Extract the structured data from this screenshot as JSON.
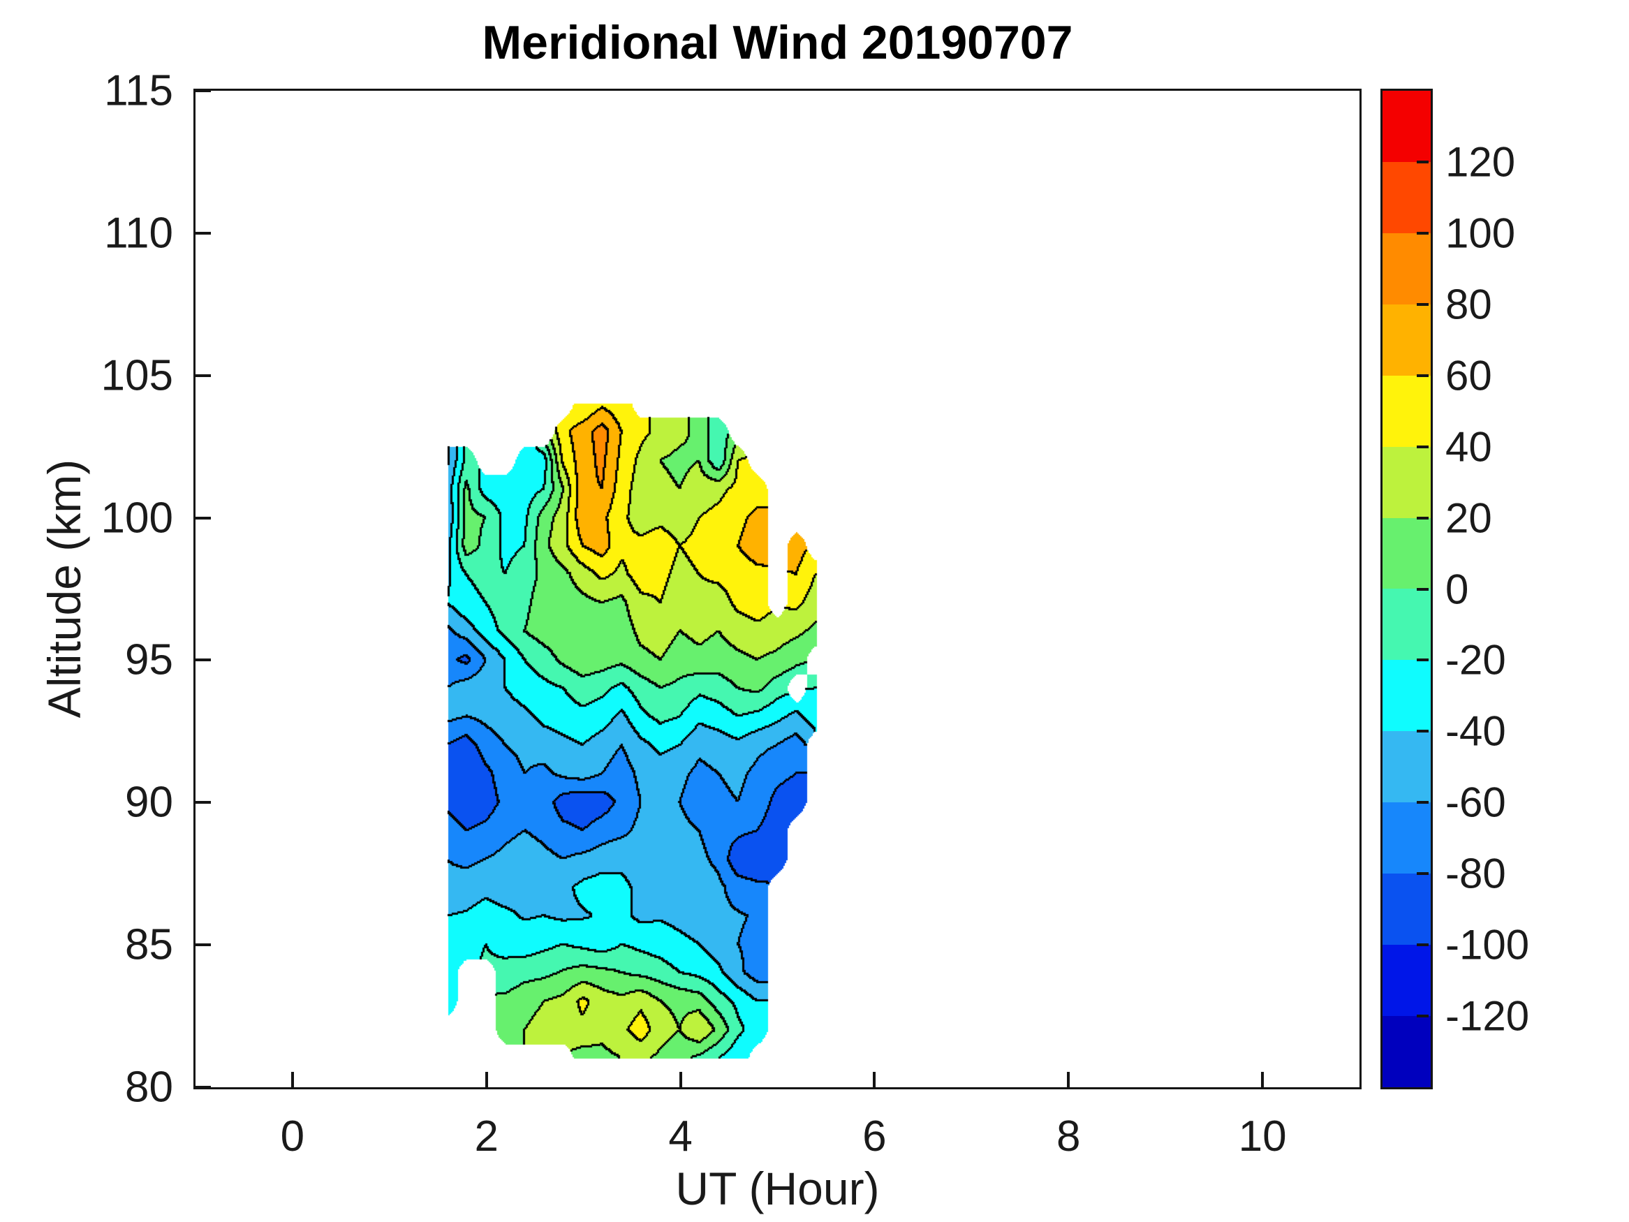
{
  "figure": {
    "title": "Meridional Wind 20190707",
    "background_color": "#ffffff",
    "axis_color": "#141414"
  },
  "axes": {
    "xlabel": "UT (Hour)",
    "ylabel": "Altitude (km)",
    "x_range": [
      -1,
      11
    ],
    "y_range": [
      80,
      115
    ],
    "x_ticks": [
      0,
      2,
      4,
      6,
      8,
      10
    ],
    "y_ticks": [
      80,
      85,
      90,
      95,
      100,
      105,
      110,
      115
    ]
  },
  "colorbar": {
    "range": [
      -140,
      140
    ],
    "band_step": 20,
    "tick_values": [
      120,
      100,
      80,
      60,
      40,
      20,
      0,
      -20,
      -40,
      -60,
      -80,
      -100,
      -120
    ],
    "colors_top_to_bottom": [
      "#f40000",
      "#ff4800",
      "#ff8b00",
      "#ffb200",
      "#fff30b",
      "#bdf23d",
      "#67f06e",
      "#45f7b0",
      "#0ffcfe",
      "#35b8f2",
      "#1787fb",
      "#0a52f0",
      "#0016e8",
      "#0000be"
    ]
  },
  "chart_data": {
    "type": "filled-contour",
    "title": "Meridional Wind 20190707",
    "xlabel": "UT (Hour)",
    "ylabel": "Altitude (km)",
    "contour_levels_step": 20,
    "value_range": [
      -140,
      140
    ],
    "contour_line_color": "#000000",
    "legend_position": "right-colorbar",
    "grid": false,
    "ut_hours": [
      1.6,
      1.8,
      2.0,
      2.2,
      2.4,
      2.6,
      2.8,
      3.0,
      3.2,
      3.4,
      3.6,
      3.8,
      4.0,
      4.2,
      4.4,
      4.6,
      4.8,
      5.0,
      5.2,
      5.4
    ],
    "altitudes_km": [
      104,
      103,
      102,
      101,
      100,
      99,
      98,
      97,
      96,
      95,
      94,
      93,
      92,
      91,
      90,
      89,
      88,
      87,
      86,
      85,
      84,
      83,
      82,
      81
    ],
    "values": [
      [
        null,
        null,
        null,
        null,
        null,
        null,
        null,
        40,
        55,
        45,
        null,
        null,
        null,
        null,
        null,
        null,
        null,
        null,
        null,
        null
      ],
      [
        null,
        null,
        null,
        null,
        null,
        null,
        55,
        70,
        90,
        60,
        45,
        35,
        25,
        15,
        -15,
        null,
        null,
        null,
        null,
        null
      ],
      [
        -65,
        -15,
        null,
        null,
        -35,
        -30,
        45,
        70,
        85,
        55,
        35,
        20,
        15,
        20,
        -20,
        40,
        null,
        null,
        null,
        null
      ],
      [
        -55,
        5,
        -30,
        -35,
        -30,
        -20,
        20,
        75,
        80,
        50,
        30,
        25,
        20,
        30,
        35,
        45,
        50,
        null,
        null,
        null
      ],
      [
        -60,
        5,
        0,
        -25,
        -25,
        10,
        30,
        75,
        65,
        45,
        30,
        35,
        30,
        40,
        45,
        55,
        65,
        null,
        null,
        null
      ],
      [
        -50,
        10,
        -5,
        -25,
        -20,
        15,
        35,
        60,
        70,
        45,
        45,
        50,
        40,
        45,
        50,
        60,
        70,
        null,
        70,
        null
      ],
      [
        -45,
        -20,
        -15,
        -20,
        -10,
        5,
        15,
        30,
        45,
        35,
        50,
        45,
        35,
        40,
        45,
        50,
        55,
        null,
        60,
        40
      ],
      [
        -40,
        -25,
        -20,
        -10,
        -5,
        10,
        10,
        15,
        20,
        15,
        35,
        40,
        30,
        35,
        30,
        45,
        50,
        null,
        45,
        30
      ],
      [
        -65,
        -50,
        -30,
        -15,
        0,
        10,
        15,
        20,
        15,
        10,
        25,
        30,
        20,
        25,
        20,
        30,
        35,
        30,
        25,
        15
      ],
      [
        -75,
        -85,
        -60,
        -40,
        -20,
        -10,
        5,
        15,
        10,
        5,
        15,
        20,
        10,
        15,
        10,
        15,
        20,
        15,
        5,
        null
      ],
      [
        -60,
        -50,
        -45,
        -40,
        -30,
        -25,
        -20,
        -10,
        -15,
        -25,
        -10,
        0,
        -5,
        -15,
        -10,
        0,
        5,
        -10,
        null,
        -20
      ],
      [
        -55,
        -60,
        -55,
        -50,
        -45,
        -35,
        -30,
        -25,
        -30,
        -45,
        -25,
        -15,
        -20,
        -35,
        -30,
        -20,
        -25,
        -35,
        -45,
        -30
      ],
      [
        -80,
        -90,
        -70,
        -60,
        -55,
        -50,
        -45,
        -40,
        -50,
        -60,
        -45,
        -35,
        -40,
        -55,
        -50,
        -45,
        -55,
        -60,
        -70,
        null
      ],
      [
        -95,
        -100,
        -85,
        -70,
        -60,
        -65,
        -55,
        -50,
        -60,
        -70,
        -55,
        -50,
        -55,
        -65,
        -60,
        -55,
        -65,
        -75,
        -80,
        null
      ],
      [
        -85,
        -95,
        -90,
        -75,
        -65,
        -70,
        -90,
        -95,
        -90,
        -75,
        -60,
        -55,
        -60,
        -70,
        -65,
        -60,
        -70,
        -85,
        -90,
        null
      ],
      [
        -70,
        -80,
        -75,
        -65,
        -60,
        -65,
        -75,
        -80,
        -70,
        -65,
        -55,
        -50,
        -55,
        -60,
        -70,
        -75,
        -80,
        -90,
        null,
        null
      ],
      [
        -60,
        -65,
        -60,
        -55,
        -50,
        -55,
        -60,
        -55,
        -50,
        -45,
        -50,
        -45,
        -50,
        -55,
        -65,
        -95,
        -100,
        -85,
        null,
        null
      ],
      [
        -55,
        -50,
        -45,
        -50,
        -45,
        -40,
        -45,
        -35,
        -30,
        -35,
        -45,
        -40,
        -45,
        -50,
        -55,
        -70,
        -75,
        null,
        null,
        null
      ],
      [
        -40,
        -38,
        -32,
        -36,
        -42,
        -40,
        -44,
        -42,
        -38,
        -35,
        -45,
        -42,
        -46,
        -50,
        -55,
        -58,
        -62,
        null,
        null,
        null
      ],
      [
        -30,
        -25,
        -20,
        -25,
        -30,
        -25,
        -20,
        -25,
        -30,
        -20,
        -25,
        -30,
        -35,
        -40,
        -50,
        -60,
        -65,
        null,
        null,
        null
      ],
      [
        -20,
        null,
        null,
        -15,
        -8,
        -5,
        2,
        8,
        5,
        0,
        -5,
        -10,
        -20,
        -25,
        -35,
        -55,
        -70,
        null,
        null,
        null
      ],
      [
        -25,
        null,
        null,
        5,
        15,
        20,
        25,
        45,
        30,
        25,
        35,
        20,
        15,
        10,
        -10,
        -25,
        -40,
        null,
        null,
        null
      ],
      [
        null,
        null,
        null,
        10,
        20,
        25,
        30,
        35,
        25,
        35,
        50,
        30,
        20,
        40,
        15,
        -15,
        -30,
        null,
        null,
        null
      ],
      [
        null,
        null,
        null,
        null,
        null,
        null,
        null,
        10,
        15,
        20,
        25,
        15,
        5,
        -5,
        -20,
        -35,
        null,
        null,
        null,
        null
      ]
    ]
  }
}
